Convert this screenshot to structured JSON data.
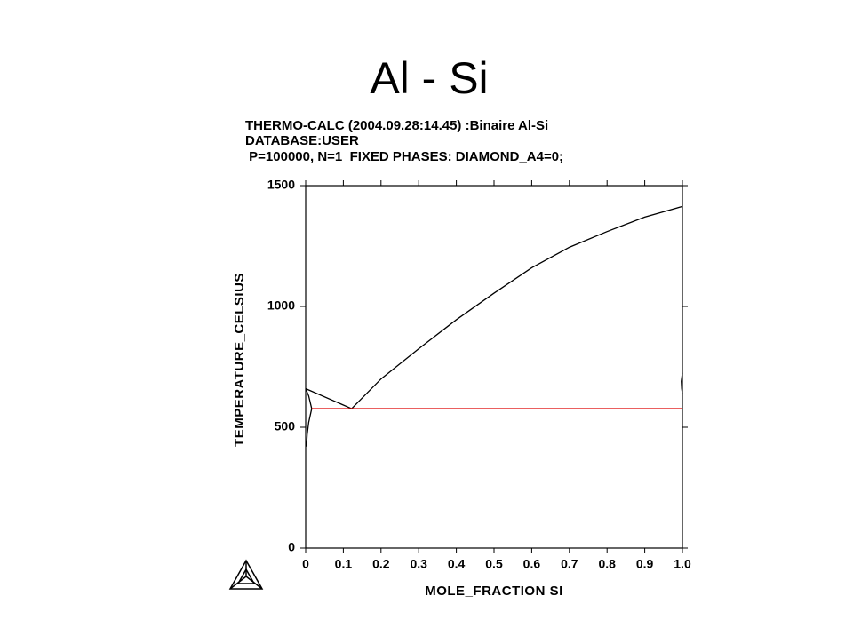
{
  "chart_data": {
    "type": "line",
    "title": "Al - Si",
    "subtitle": [
      "THERMO-CALC (2004.09.28:14.45) :Binaire Al-Si",
      "DATABASE:USER",
      " P=100000, N=1  FIXED PHASES: DIAMOND_A4=0;"
    ],
    "x_label": "MOLE_FRACTION SI",
    "y_label": "TEMPERATURE_CELSIUS",
    "xlim": [
      0,
      1
    ],
    "ylim": [
      0,
      1500
    ],
    "xticks": [
      0,
      0.1,
      0.2,
      0.3,
      0.4,
      0.5,
      0.6,
      0.7,
      0.8,
      0.9,
      {
        "value": 1,
        "label": "1.0"
      }
    ],
    "yticks": [
      0,
      500,
      1000,
      1500
    ],
    "series": [
      {
        "color": "#000000",
        "x": [
          0,
          0.122
        ],
        "values": [
          660,
          577
        ]
      },
      {
        "color": "#000000",
        "x": [
          0.122,
          0.2,
          0.3,
          0.4,
          0.5,
          0.6,
          0.7,
          0.8,
          0.9,
          1.0
        ],
        "values": [
          577,
          700,
          825,
          945,
          1055,
          1160,
          1245,
          1310,
          1370,
          1414
        ]
      },
      {
        "color": "#000000",
        "x": [
          0,
          0.008,
          0.016
        ],
        "values": [
          660,
          630,
          577
        ]
      },
      {
        "color": "#000000",
        "x": [
          0.016,
          0.008,
          0.004,
          0.002
        ],
        "values": [
          577,
          520,
          470,
          420
        ]
      },
      {
        "color": "#000000",
        "x": [
          1.0,
          0.997,
          0.998,
          1.0
        ],
        "values": [
          725,
          690,
          660,
          640
        ]
      },
      {
        "color": "#dd0000",
        "x": [
          0.016,
          1.0
        ],
        "values": [
          577,
          577
        ]
      }
    ]
  }
}
